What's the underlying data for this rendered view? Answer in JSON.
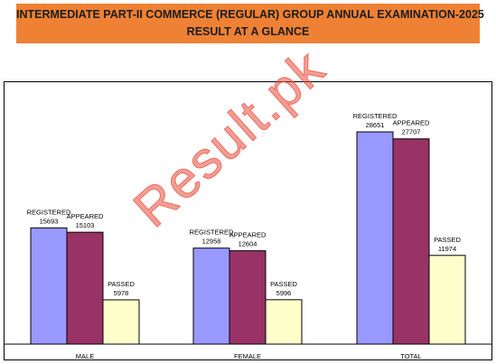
{
  "banner": {
    "line1": "INTERMEDIATE PART-II COMMERCE (REGULAR) GROUP ANNUAL EXAMINATION-2025",
    "line2": "RESULT AT A GLANCE"
  },
  "watermark": "Result.pk",
  "colors": {
    "banner": "#ee8133",
    "registered": "#9999ff",
    "appeared": "#993366",
    "passed": "#ffffcc"
  },
  "chart_data": {
    "type": "bar",
    "categories": [
      "MALE",
      "FEMALE",
      "TOTAL"
    ],
    "series": [
      {
        "name": "REGISTERED",
        "values": [
          15693,
          12958,
          28651
        ]
      },
      {
        "name": "APPEARED",
        "values": [
          15103,
          12604,
          27707
        ]
      },
      {
        "name": "PASSED",
        "values": [
          5978,
          5996,
          11974
        ]
      }
    ],
    "ylim": [
      0,
      35000
    ],
    "grid": false,
    "legend": "none",
    "title": "",
    "xlabel": "",
    "ylabel": ""
  }
}
